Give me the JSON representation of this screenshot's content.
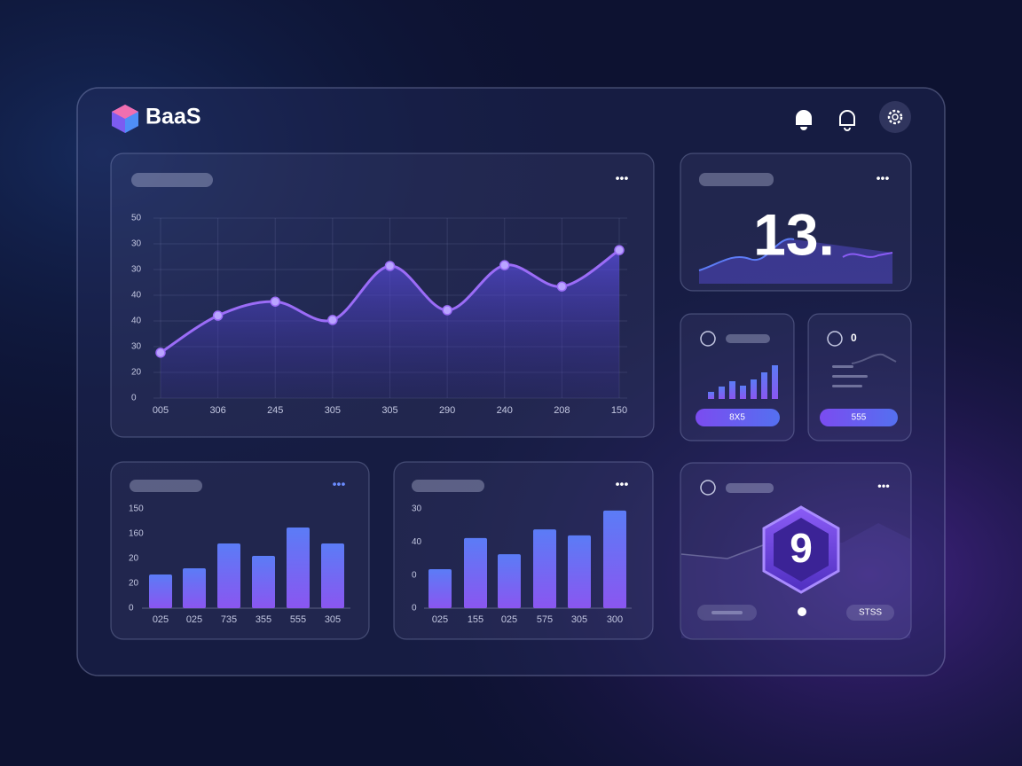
{
  "header": {
    "brand": "BaaS"
  },
  "main_chart": {
    "ylim": [
      0,
      50
    ],
    "y_labels": [
      "50",
      "30",
      "30",
      "40",
      "40",
      "30",
      "20",
      "0"
    ],
    "x_labels": [
      "005",
      "306",
      "245",
      "305",
      "305",
      "290",
      "240",
      "208",
      "150"
    ],
    "values": [
      12.6,
      22.9,
      26.8,
      21.7,
      36.7,
      24.4,
      36.9,
      31,
      41.1
    ],
    "color": "#9b6cf7"
  },
  "bar_chart_left": {
    "ylim": [
      0,
      150
    ],
    "y_labels": [
      "150",
      "160",
      "20",
      "20",
      "0"
    ],
    "x_labels": [
      "025",
      "025",
      "735",
      "355",
      "555",
      "305"
    ],
    "values": [
      50.9,
      60.3,
      97.8,
      79,
      121.9,
      97.8
    ]
  },
  "bar_chart_right": {
    "ylim": [
      0,
      30
    ],
    "y_labels": [
      "30",
      "40",
      "0",
      "0"
    ],
    "x_labels": [
      "025",
      "155",
      "025",
      "575",
      "305",
      "300"
    ],
    "values": [
      11.8,
      21.2,
      16.3,
      23.8,
      22,
      29.5
    ]
  },
  "stat_card": {
    "value": "13."
  },
  "mini_card_left": {
    "button": "8X5"
  },
  "mini_card_right": {
    "value": "0",
    "button": "555"
  },
  "badge_card": {
    "value": "9",
    "button": "STSS"
  }
}
